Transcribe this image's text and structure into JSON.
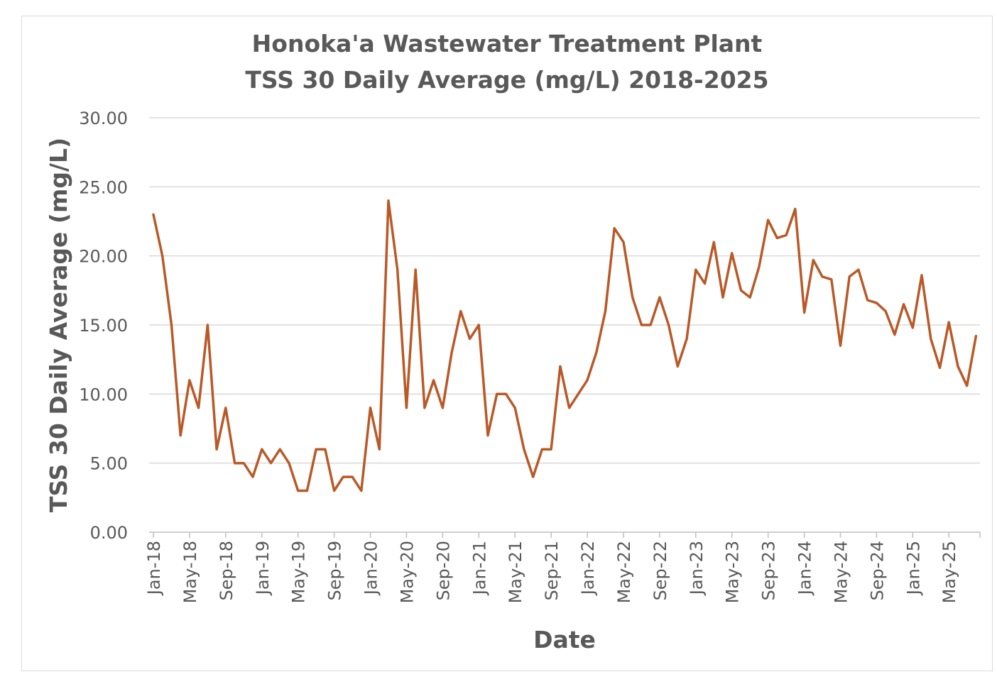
{
  "chart_data": {
    "type": "line",
    "title": [
      "Honoka'a Wastewater Treatment Plant",
      "TSS 30 Daily Average (mg/L) 2018-2025"
    ],
    "xlabel": "Date",
    "ylabel": "TSS 30 Daily Average (mg/L)",
    "ylim": [
      0,
      30
    ],
    "yticks": [
      "0.00",
      "5.00",
      "10.00",
      "15.00",
      "20.00",
      "25.00",
      "30.00"
    ],
    "grid": true,
    "start_month": "Jan-18",
    "xticks": [
      "Jan-18",
      "May-18",
      "Sep-18",
      "Jan-19",
      "May-19",
      "Sep-19",
      "Jan-20",
      "May-20",
      "Sep-20",
      "Jan-21",
      "May-21",
      "Sep-21",
      "Jan-22",
      "May-22",
      "Sep-22",
      "Jan-23",
      "May-23",
      "Sep-23",
      "Jan-24",
      "May-24",
      "Sep-24",
      "Jan-25",
      "May-25"
    ],
    "line_color": "#b85a28",
    "series": [
      {
        "name": "TSS 30 Daily Average",
        "values": [
          23,
          20,
          15,
          7,
          11,
          9,
          15,
          6,
          9,
          5,
          5,
          4,
          6,
          5,
          6,
          5,
          3,
          3,
          6,
          6,
          3,
          4,
          4,
          3,
          9,
          6,
          24,
          19,
          9,
          19,
          9,
          11,
          9,
          13,
          16,
          14,
          15,
          7,
          10,
          10,
          9,
          6,
          4,
          6,
          6,
          12,
          9,
          10,
          11,
          13,
          16,
          22,
          21,
          17,
          15,
          15,
          17,
          15,
          12,
          14,
          19,
          18,
          21,
          17,
          20.2,
          17.5,
          17,
          19.2,
          22.6,
          21.3,
          21.5,
          23.4,
          15.9,
          19.7,
          18.5,
          18.3,
          13.5,
          18.5,
          19,
          16.8,
          16.6,
          16,
          14.3,
          16.5,
          14.8,
          18.6,
          14,
          11.9,
          15.2,
          12,
          10.6,
          14.2
        ]
      }
    ]
  }
}
